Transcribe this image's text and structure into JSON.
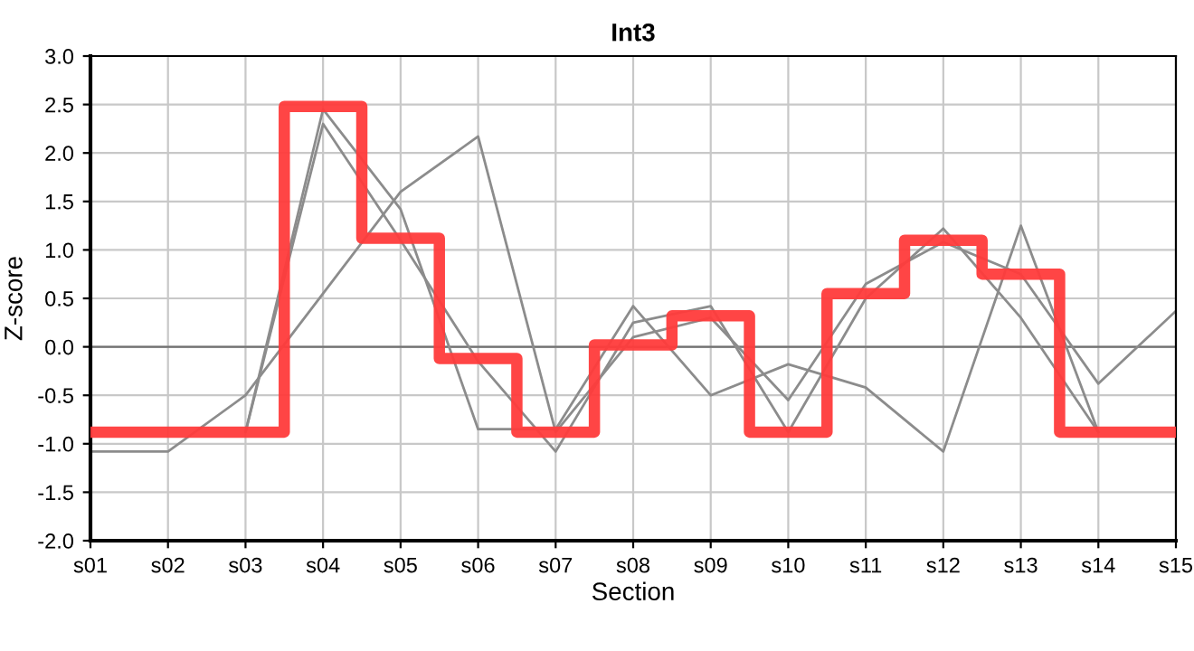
{
  "chart_data": {
    "type": "line",
    "title": "Int3",
    "xlabel": "Section",
    "ylabel": "Z-score",
    "categories": [
      "s01",
      "s02",
      "s03",
      "s04",
      "s05",
      "s06",
      "s07",
      "s08",
      "s09",
      "s10",
      "s11",
      "s12",
      "s13",
      "s14",
      "s15"
    ],
    "series": [
      {
        "color": "#8c8c8c",
        "values": [
          -1.08,
          -1.08,
          -0.5,
          0.55,
          1.6,
          2.17,
          -0.88,
          0.1,
          0.3,
          -0.55,
          0.65,
          1.08,
          0.75,
          -0.38,
          0.37
        ]
      },
      {
        "color": "#8c8c8c",
        "values": [
          null,
          null,
          -0.88,
          2.45,
          1.42,
          -0.85,
          -0.85,
          0.42,
          -0.5,
          -0.18,
          -0.42,
          -1.08,
          1.25,
          -0.88,
          null
        ]
      },
      {
        "color": "#8c8c8c",
        "values": [
          null,
          null,
          -0.88,
          2.3,
          1.1,
          -0.15,
          -1.08,
          0.25,
          0.42,
          -0.88,
          0.5,
          1.22,
          0.3,
          -0.88,
          null
        ]
      },
      {
        "type": "step",
        "color": "#ff3b3b",
        "values": [
          -0.88,
          -0.88,
          -0.88,
          2.48,
          1.12,
          -0.12,
          -0.88,
          0.02,
          0.32,
          -0.88,
          0.55,
          1.1,
          0.75,
          -0.88,
          -0.88
        ]
      }
    ],
    "ylim": [
      -2.0,
      3.0
    ],
    "yticks": [
      {
        "value": -2,
        "label": "-2.0"
      },
      {
        "value": -1.5,
        "label": "-1.5"
      },
      {
        "value": -1,
        "label": "-1.0"
      },
      {
        "value": -0.5,
        "label": "-0.5"
      },
      {
        "value": 0,
        "label": "0.0"
      },
      {
        "value": 0.5,
        "label": "0.5"
      },
      {
        "value": 1,
        "label": "1.0"
      },
      {
        "value": 1.5,
        "label": "1.5"
      },
      {
        "value": 2,
        "label": "2.0"
      },
      {
        "value": 2.5,
        "label": "2.5"
      },
      {
        "value": 3,
        "label": "3.0"
      }
    ],
    "ref_lines": [
      {
        "axis": "y",
        "value": 0,
        "color": "#707070"
      }
    ],
    "grid": true,
    "legend": false
  }
}
